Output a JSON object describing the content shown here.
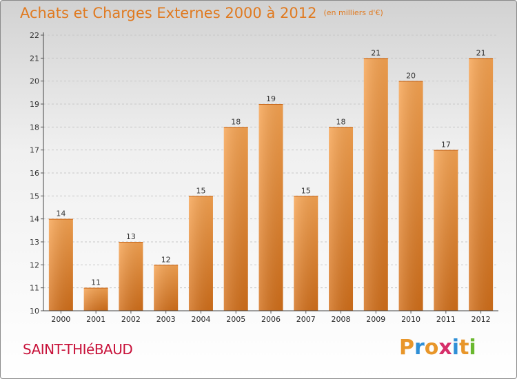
{
  "header": {
    "title": "Achats et Charges Externes 2000 à 2012",
    "unit": "(en milliers d'€)"
  },
  "footer": {
    "commune": "SAINT-THIéBAUD",
    "brand_letters": [
      "P",
      "r",
      "o",
      "x",
      "i",
      "t",
      "i"
    ],
    "brand_colors": [
      "#e8962a",
      "#2f8fd6",
      "#e8962a",
      "#d62f6a",
      "#2f8fd6",
      "#e8962a",
      "#6ab82f"
    ]
  },
  "colors": {
    "bar_light": "#f7a452",
    "bar_dark": "#d26f1a",
    "title": "#e07a20",
    "commune": "#c8123a"
  },
  "chart_data": {
    "type": "bar",
    "categories": [
      "2000",
      "2001",
      "2002",
      "2003",
      "2004",
      "2005",
      "2006",
      "2007",
      "2008",
      "2009",
      "2010",
      "2011",
      "2012"
    ],
    "values": [
      14,
      11,
      13,
      12,
      15,
      18,
      19,
      15,
      18,
      21,
      20,
      17,
      21
    ],
    "data_labels": [
      "14",
      "11",
      "13",
      "12",
      "15",
      "18",
      "19",
      "15",
      "18",
      "21",
      "20",
      "17",
      "21"
    ],
    "ylim": [
      10,
      22
    ],
    "yticks": [
      10,
      11,
      12,
      13,
      14,
      15,
      16,
      17,
      18,
      19,
      20,
      21,
      22
    ],
    "ytick_labels": [
      "10",
      "11",
      "12",
      "13",
      "14",
      "15",
      "16",
      "17",
      "18",
      "19",
      "20",
      "21",
      "22"
    ],
    "grid": "horizontal dashed",
    "title": "Achats et Charges Externes 2000 à 2012",
    "xlabel": "",
    "ylabel": ""
  }
}
